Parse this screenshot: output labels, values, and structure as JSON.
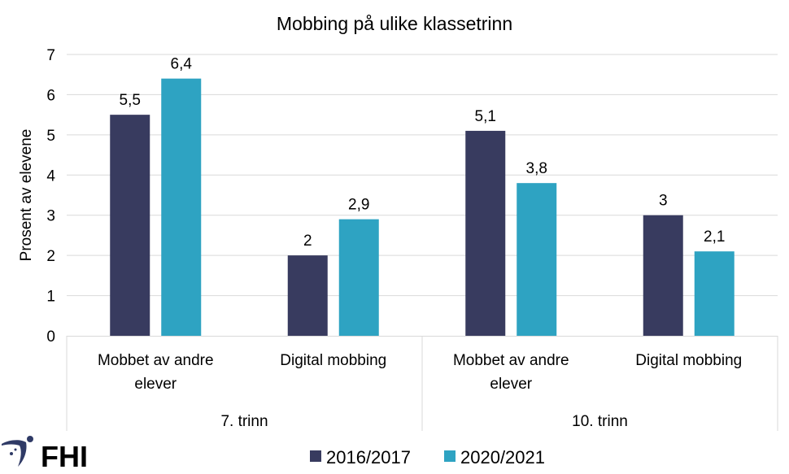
{
  "chart_data": {
    "type": "bar",
    "title": "Mobbing på ulike klassetrinn",
    "xlabel": "",
    "ylabel": "Prosent av elevene",
    "ylim": [
      0,
      7
    ],
    "yticks": [
      "0",
      "1",
      "2",
      "3",
      "4",
      "5",
      "6",
      "7"
    ],
    "grid": true,
    "legend_position": "bottom",
    "groups": [
      {
        "label": "7. trinn",
        "categories": [
          [
            "Mobbet av andre",
            "elever"
          ],
          [
            "Digital mobbing"
          ]
        ]
      },
      {
        "label": "10. trinn",
        "categories": [
          [
            "Mobbet av andre",
            "elever"
          ],
          [
            "Digital mobbing"
          ]
        ]
      }
    ],
    "categories": [
      "7. trinn – Mobbet av andre elever",
      "7. trinn – Digital mobbing",
      "10. trinn – Mobbet av andre elever",
      "10. trinn – Digital mobbing"
    ],
    "series": [
      {
        "name": "2016/2017",
        "color": "#383b5f",
        "values": [
          5.5,
          2,
          5.1,
          3
        ],
        "labels": [
          "5,5",
          "2",
          "5,1",
          "3"
        ]
      },
      {
        "name": "2020/2021",
        "color": "#2ea3c2",
        "values": [
          6.4,
          2.9,
          3.8,
          2.1
        ],
        "labels": [
          "6,4",
          "2,9",
          "3,8",
          "2,1"
        ]
      }
    ]
  },
  "logo": {
    "text": "FHI",
    "color": "#2f3a66"
  }
}
